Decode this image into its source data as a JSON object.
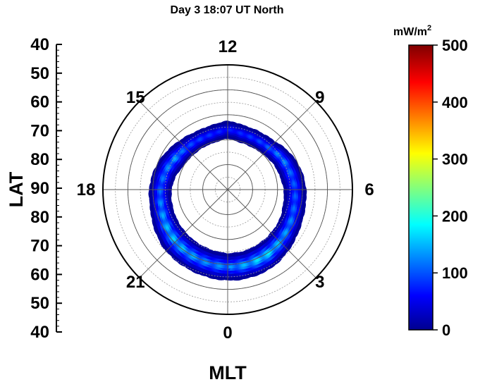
{
  "chart_data": {
    "type": "polar-heatmap",
    "title": "Day 3 18:07 UT North",
    "radial_axis": {
      "label": "LAT",
      "range": [
        40,
        90
      ],
      "ticks_top": [
        "40",
        "50",
        "60",
        "70",
        "80"
      ],
      "ticks_center": "90",
      "ticks_bottom": [
        "80",
        "70",
        "60",
        "50",
        "40"
      ],
      "circles": [
        50,
        60,
        70,
        80
      ]
    },
    "angular_axis": {
      "label": "MLT",
      "ticks": [
        {
          "mlt": 12,
          "text": "12"
        },
        {
          "mlt": 9,
          "text": "9"
        },
        {
          "mlt": 6,
          "text": "6"
        },
        {
          "mlt": 3,
          "text": "3"
        },
        {
          "mlt": 0,
          "text": "0"
        },
        {
          "mlt": 21,
          "text": "21"
        },
        {
          "mlt": 18,
          "text": "18"
        },
        {
          "mlt": 15,
          "text": "15"
        }
      ]
    },
    "colorbar": {
      "unit_text": "mW/m",
      "unit_sup": "2",
      "range": [
        0,
        500
      ],
      "ticks": [
        "0",
        "100",
        "200",
        "300",
        "400",
        "500"
      ],
      "colormap": "jet"
    },
    "oval": {
      "description_free": true,
      "points": [
        {
          "mlt": 0,
          "lat": 59,
          "width": 5,
          "peak": 130
        },
        {
          "mlt": 1,
          "lat": 59,
          "width": 5,
          "peak": 150
        },
        {
          "mlt": 2,
          "lat": 59.5,
          "width": 5,
          "peak": 180
        },
        {
          "mlt": 3,
          "lat": 60.5,
          "width": 4.5,
          "peak": 150
        },
        {
          "mlt": 4,
          "lat": 61.5,
          "width": 4,
          "peak": 130
        },
        {
          "mlt": 5,
          "lat": 62.5,
          "width": 4,
          "peak": 110
        },
        {
          "mlt": 6,
          "lat": 63,
          "width": 4,
          "peak": 100
        },
        {
          "mlt": 7,
          "lat": 64,
          "width": 4,
          "peak": 110
        },
        {
          "mlt": 8,
          "lat": 65,
          "width": 3.5,
          "peak": 130
        },
        {
          "mlt": 9,
          "lat": 66.5,
          "width": 3,
          "peak": 110
        },
        {
          "mlt": 10,
          "lat": 67,
          "width": 3,
          "peak": 90
        },
        {
          "mlt": 11,
          "lat": 67,
          "width": 3,
          "peak": 80
        },
        {
          "mlt": 12,
          "lat": 66,
          "width": 3,
          "peak": 70
        },
        {
          "mlt": 13,
          "lat": 67,
          "width": 3,
          "peak": 80
        },
        {
          "mlt": 14,
          "lat": 67,
          "width": 3,
          "peak": 90
        },
        {
          "mlt": 15,
          "lat": 66.5,
          "width": 3.5,
          "peak": 100
        },
        {
          "mlt": 16,
          "lat": 65.5,
          "width": 4,
          "peak": 140
        },
        {
          "mlt": 17,
          "lat": 64,
          "width": 4,
          "peak": 120
        },
        {
          "mlt": 18,
          "lat": 63,
          "width": 4,
          "peak": 110
        },
        {
          "mlt": 19,
          "lat": 62.5,
          "width": 4,
          "peak": 130
        },
        {
          "mlt": 20,
          "lat": 61.5,
          "width": 4.5,
          "peak": 150
        },
        {
          "mlt": 21,
          "lat": 60.5,
          "width": 5,
          "peak": 160
        },
        {
          "mlt": 22,
          "lat": 60,
          "width": 5,
          "peak": 150
        },
        {
          "mlt": 23,
          "lat": 59.5,
          "width": 5,
          "peak": 130
        }
      ]
    }
  }
}
